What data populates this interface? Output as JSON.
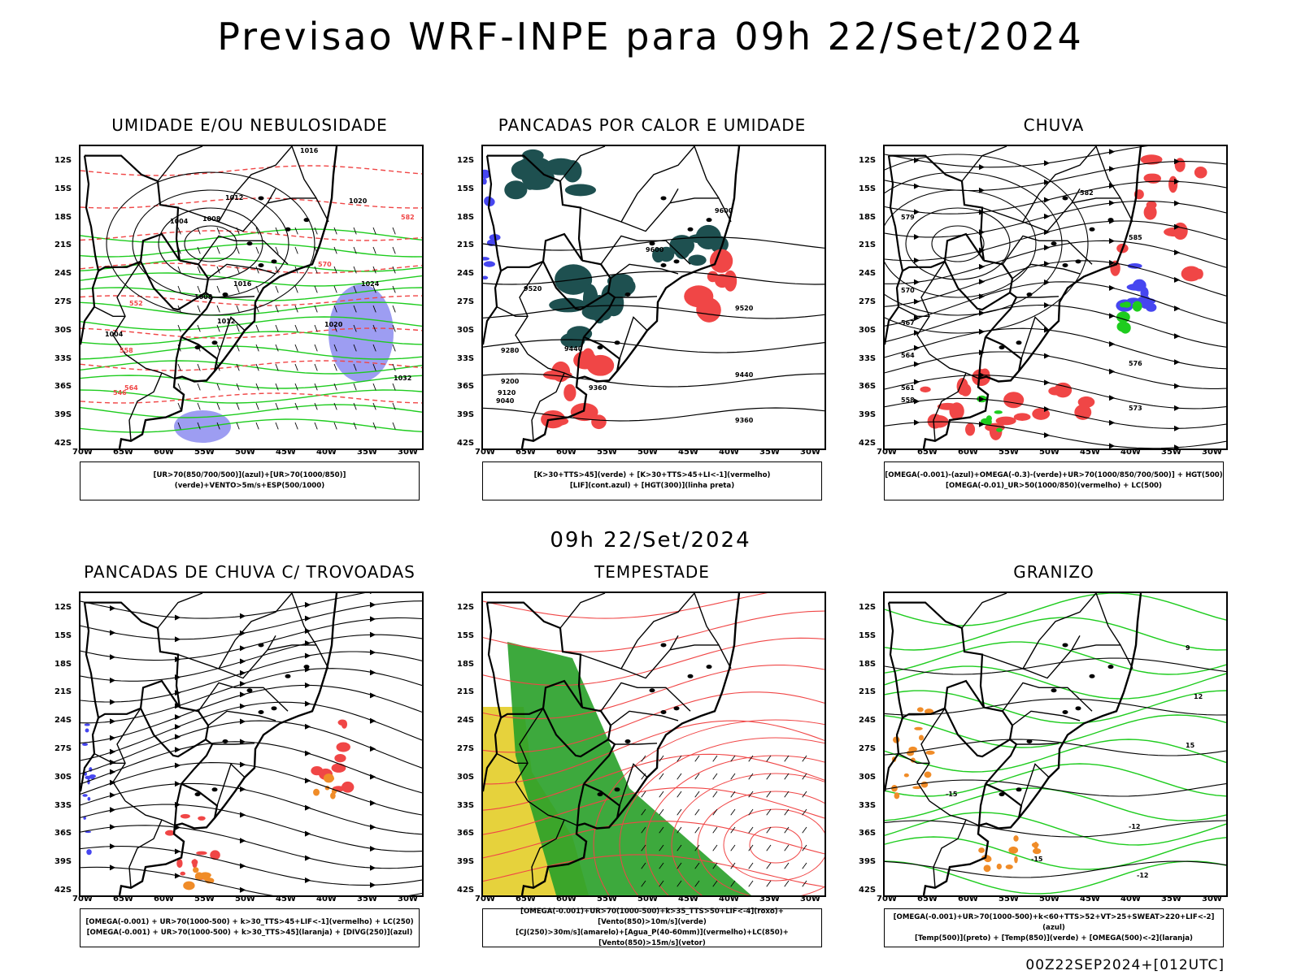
{
  "title": "Previsao WRF-INPE  para 09h 22/Set/2024",
  "mid_title": "09h 22/Set/2024",
  "footer": "00Z22SEP2024+[012UTC]",
  "y_ticks": [
    "12S",
    "15S",
    "18S",
    "21S",
    "24S",
    "27S",
    "30S",
    "33S",
    "36S",
    "39S",
    "42S"
  ],
  "x_ticks": [
    "70W",
    "65W",
    "60W",
    "55W",
    "50W",
    "45W",
    "40W",
    "35W",
    "30W"
  ],
  "panels": [
    {
      "title": "UMIDADE E/OU NEBULOSIDADE",
      "legend": [
        "[UR>70(850/700/500)](azul)+[UR>70(1000/850)](verde)+VENTO>5m/s+ESP(500/1000)"
      ],
      "labels": [
        "1016",
        "1012",
        "1008",
        "1004",
        "1020",
        "1024",
        "1016",
        "1012",
        "1008",
        "1004",
        "1020",
        "1032",
        "570",
        "552",
        "558",
        "564",
        "546",
        "582"
      ]
    },
    {
      "title": "PANCADAS POR CALOR E UMIDADE",
      "legend": [
        "[K>30+TTS>45](verde) + [K>30+TTS>45+LI<-1](vermelho)",
        "[LIF](cont.azul) + [HGT(300)](linha preta)"
      ],
      "labels": [
        "9600",
        "9520",
        "9440",
        "9360",
        "9280",
        "9200",
        "9120",
        "9040",
        "9600",
        "9520",
        "9440",
        "9360"
      ]
    },
    {
      "title": "CHUVA",
      "legend": [
        "[OMEGA(-0.001)-(azul)+OMEGA(-0.3)-(verde)+UR>70(1000/850/700/500)] + HGT(500)",
        "[OMEGA(-0.01)_UR>50(1000/850)(vermelho) + LC(500)"
      ],
      "labels": [
        "585",
        "582",
        "579",
        "576",
        "573",
        "570",
        "567",
        "564",
        "561",
        "558"
      ]
    },
    {
      "title": "PANCADAS DE CHUVA C/ TROVOADAS",
      "legend": [
        "[OMEGA(-0.001) + UR>70(1000-500) + k>30_TTS>45+LIF<-1](vermelho) + LC(250)",
        "[OMEGA(-0.001) + UR>70(1000-500) + k>30_TTS>45](laranja) + [DIVG(250)](azul)"
      ],
      "labels": []
    },
    {
      "title": "TEMPESTADE",
      "legend": [
        "[OMEGA(-0.001)+UR>70(1000-500)+k>35_TTS>50+LIF<-4](roxo)+[Vento(850)>10m/s](verde)",
        "[CJ(250)>30m/s](amarelo)+[Agua_P(40-60mm)](vermelho)+LC(850)+[Vento(850)>15m/s](vetor)"
      ],
      "labels": []
    },
    {
      "title": "GRANIZO",
      "legend": [
        "[OMEGA(-0.001)+UR>70(1000-500)+k<60+TTS>52+VT>25+SWEAT>220+LIF<-2](azul)",
        "[Temp(500)](preto) + [Temp(850)](verde) + [OMEGA(500)<-2](laranja)"
      ],
      "labels": [
        "-12",
        "-15",
        "-12",
        "-15",
        "12",
        "15",
        "9"
      ]
    }
  ],
  "colors": {
    "red": "#f04646",
    "green": "#1ecc1e",
    "blue": "#4646f0",
    "purple": "#8c8cf0",
    "teal": "#1e5050",
    "yellow": "#e6d23c",
    "orange": "#f08c28",
    "dkgreen": "#28a028"
  }
}
